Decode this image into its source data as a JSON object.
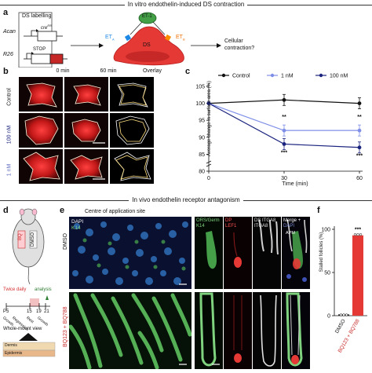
{
  "section_a_title": "In vitro endothelin-induced DS contraction",
  "section_b_title": "In vivo endothelin receptor antagonism",
  "panel_a": {
    "letter": "a",
    "ds_labelling": "DS labelling",
    "acan": "Acan",
    "cre": "cre",
    "cre_sup": "ER",
    "r26": "R26",
    "stop": "STOP",
    "rfp": "RFP",
    "et1": "ET-1",
    "eta": "ET",
    "eta_sub": "A",
    "etb": "ET",
    "etb_sub": "B",
    "ds": "DS",
    "question": "Cellular contraction?"
  },
  "panel_b": {
    "letter": "b",
    "col_headers": [
      "0 min",
      "60 min",
      "Overlay"
    ],
    "row_labels": [
      "Control",
      "100 nM",
      "1 nM"
    ]
  },
  "panel_c": {
    "letter": "c",
    "colors": {
      "control": "#111111",
      "nm1": "#7f8fe8",
      "nm100": "#1a237e"
    }
  },
  "chart_data": {
    "type": "line",
    "x": [
      0,
      30,
      60
    ],
    "xlabel": "Time (min)",
    "ylabel": "Average change in surface area (%)",
    "ylim": [
      80,
      105
    ],
    "yticks": [
      80,
      85,
      90,
      95,
      100,
      105
    ],
    "y_axis_break": true,
    "legend_placement": "top",
    "series": [
      {
        "name": "Control",
        "values": [
          100,
          101,
          100
        ]
      },
      {
        "name": "1 nM",
        "values": [
          100,
          92,
          92
        ]
      },
      {
        "name": "100 nM",
        "values": [
          100,
          88,
          87
        ]
      }
    ],
    "annotations": [
      {
        "x": 30,
        "text": "**"
      },
      {
        "x": 30,
        "text": "***"
      },
      {
        "x": 60,
        "text": "**"
      },
      {
        "x": 60,
        "text": "***"
      }
    ]
  },
  "panel_d": {
    "letter": "d",
    "dmso": "DMSO",
    "bq": "BQ",
    "twice_daily": "Twice daily",
    "analysis": "analysis",
    "ages": [
      "P5",
      "15",
      "19",
      "21"
    ],
    "stages": [
      "Growth",
      "Regression",
      "Rest",
      "Growth"
    ],
    "whole_mount": "Whole-mount view",
    "dermis": "Dermis",
    "epidermis": "Epidermis"
  },
  "panel_e": {
    "letter": "e",
    "centre_title": "Centre of application site",
    "dapi": "DAPI",
    "k14": "K14",
    "row_dmso": "DMSO",
    "row_bq": "BQ123 + BQ788",
    "col1_top": "ORS/Germ",
    "col1_bottom": "K14",
    "col2_top": "DP",
    "col2_bottom": "LEF1",
    "col3_top": "DS ITGA8",
    "col3_bottom": "ITGA8",
    "col4_top": "Merge +",
    "col4_bottom": "DAPI",
    "apm": "APM"
  },
  "panel_f": {
    "letter": "f",
    "ylabel": "Stalled follicles (%)",
    "yticks": [
      0,
      50,
      100
    ],
    "categories": [
      "DMSO",
      "BQ123 + BQ788"
    ],
    "values": [
      0,
      93
    ],
    "significance": "***"
  }
}
